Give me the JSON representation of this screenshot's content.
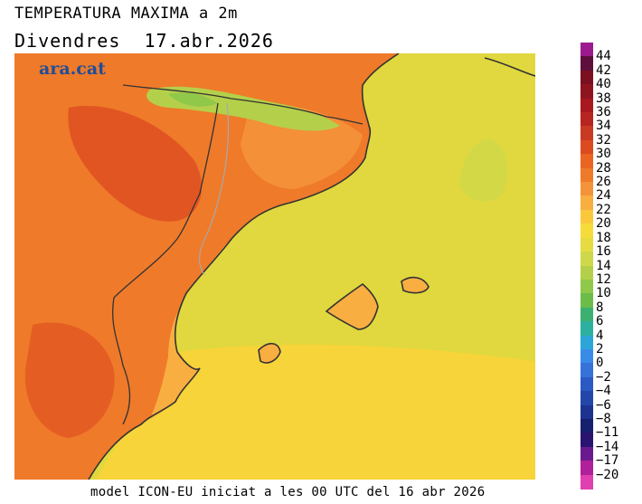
{
  "header": {
    "title": "TEMPERATURA MAXIMA a 2m",
    "subtitle": "Divendres  17.abr.2026"
  },
  "logo": {
    "text": "ara.cat",
    "color": "#1f4e99"
  },
  "footer": {
    "text": "model ICON-EU iniciat a les 00 UTC del 16 abr 2026"
  },
  "legend": {
    "labels": [
      "44",
      "42",
      "40",
      "38",
      "36",
      "34",
      "32",
      "30",
      "28",
      "26",
      "24",
      "22",
      "20",
      "18",
      "16",
      "14",
      "12",
      "10",
      "8",
      "6",
      "4",
      "2",
      "0",
      "−2",
      "−4",
      "−6",
      "−8",
      "−11",
      "−14",
      "−17",
      "−20"
    ],
    "colors": [
      "#9c1a8e",
      "#5e0f3c",
      "#7a1020",
      "#8e1420",
      "#a8181e",
      "#b82420",
      "#c83a22",
      "#dc4a20",
      "#ea6422",
      "#ef7a2a",
      "#f4943a",
      "#f8ae40",
      "#fbc83c",
      "#f6dc3a",
      "#e6dc42",
      "#cfd84a",
      "#b4d04a",
      "#90c84a",
      "#6cbc4a",
      "#3cb070",
      "#2cb0a0",
      "#2ca6d8",
      "#3a8ae8",
      "#3672d8",
      "#2c5ac4",
      "#2446a8",
      "#1c3490",
      "#16206e",
      "#2a1470",
      "#6a1a8e",
      "#b0209a",
      "#e040b0"
    ]
  },
  "map": {
    "colors": {
      "sea": "#e0d83e",
      "hot": "#ef7a2a",
      "warm": "#f4943a",
      "hotter": "#dc4a20",
      "mild": "#f8ae40",
      "cool": "#b4d04a",
      "green": "#90c84a",
      "island": "#f8ae40",
      "seawarm": "#f6d43a",
      "coast": "#333333",
      "border": "#a8a8a8"
    }
  }
}
